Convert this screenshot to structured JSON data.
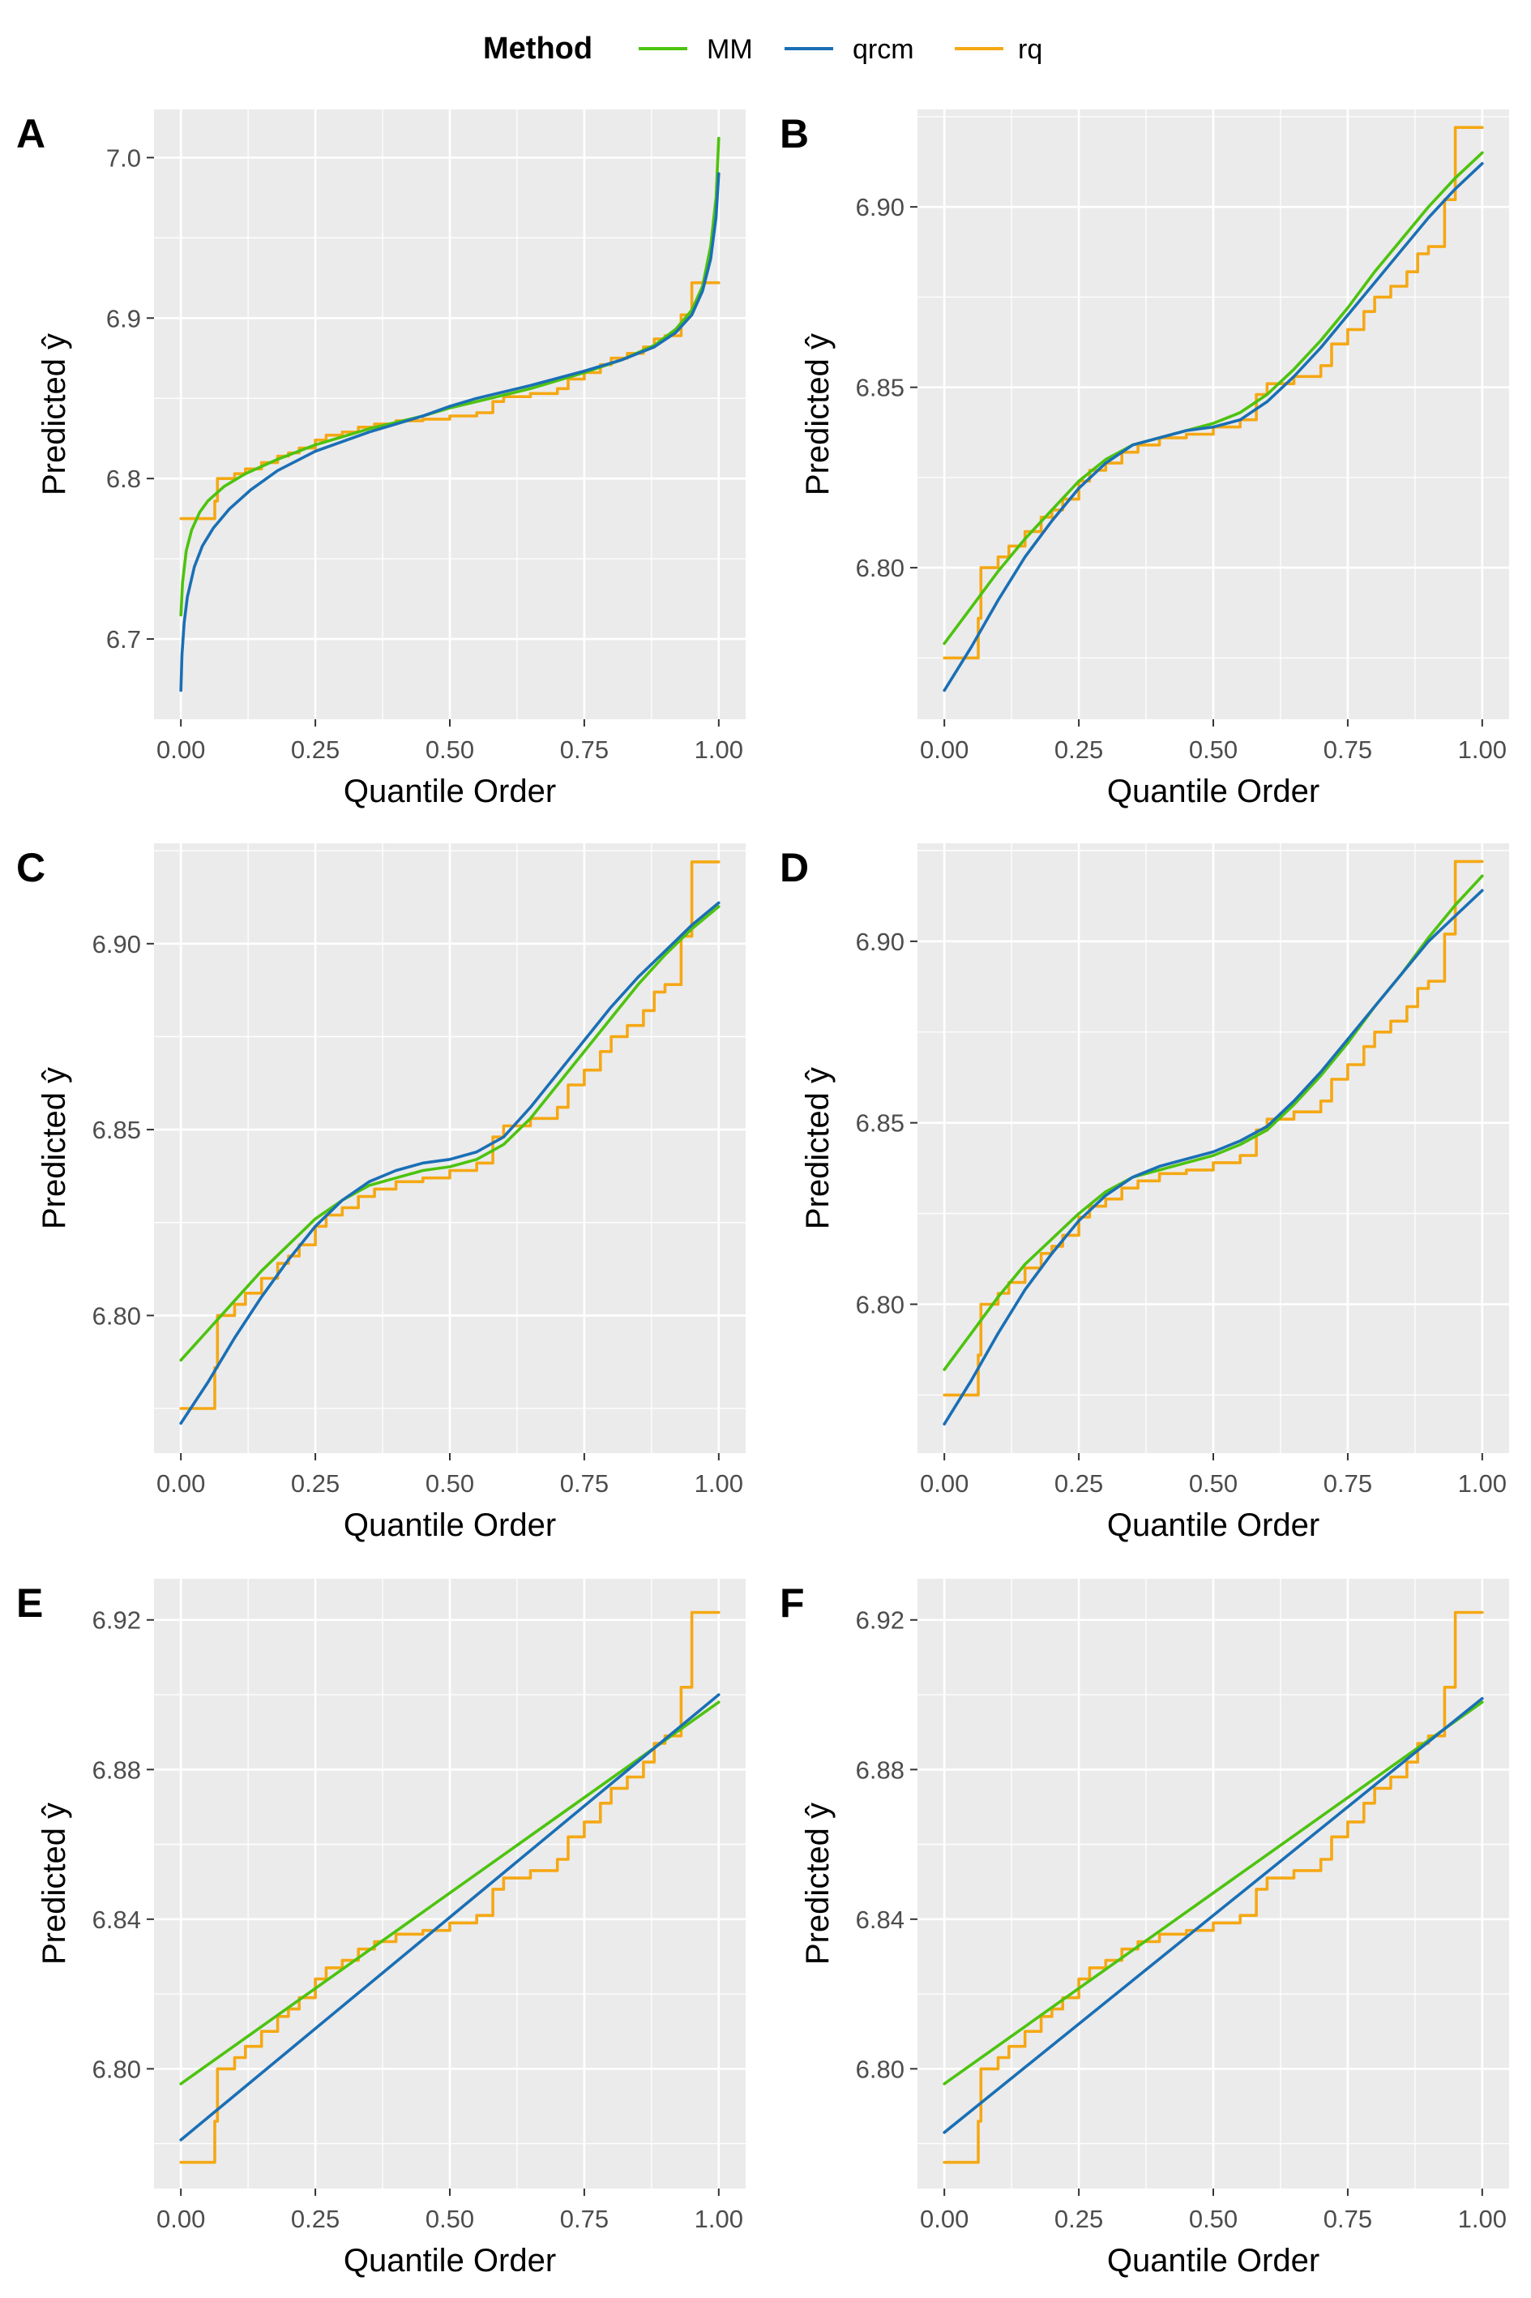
{
  "legend": {
    "title": "Method",
    "entries": [
      {
        "label": "MM",
        "color": "#4dc30f"
      },
      {
        "label": "qrcm",
        "color": "#1a6fb5"
      },
      {
        "label": "rq",
        "color": "#f5a814"
      }
    ]
  },
  "chart_data": [
    {
      "panel": "A",
      "type": "line",
      "xlabel": "Quantile Order",
      "ylabel": "Predicted",
      "xlim": [
        -0.05,
        1.05
      ],
      "ylim": [
        6.65,
        7.03
      ],
      "xticks": [
        0,
        0.25,
        0.5,
        0.75,
        1
      ],
      "xtick_labels": [
        "0.00",
        "0.25",
        "0.50",
        "0.75",
        "1.00"
      ],
      "yticks": [
        6.7,
        6.8,
        6.9,
        7.0
      ],
      "ytick_labels": [
        "6.7",
        "6.8",
        "6.9",
        "7.0"
      ],
      "series": [
        {
          "name": "rq",
          "step": true,
          "x": [
            0,
            0.063,
            0.068,
            0.1,
            0.12,
            0.15,
            0.18,
            0.2,
            0.22,
            0.25,
            0.27,
            0.3,
            0.33,
            0.36,
            0.4,
            0.45,
            0.5,
            0.55,
            0.58,
            0.6,
            0.65,
            0.7,
            0.72,
            0.75,
            0.78,
            0.8,
            0.83,
            0.86,
            0.88,
            0.9,
            0.93,
            0.95,
            1.0
          ],
          "y": [
            6.775,
            6.786,
            6.8,
            6.803,
            6.806,
            6.81,
            6.814,
            6.816,
            6.819,
            6.824,
            6.827,
            6.829,
            6.832,
            6.834,
            6.836,
            6.837,
            6.839,
            6.841,
            6.848,
            6.851,
            6.853,
            6.856,
            6.862,
            6.866,
            6.871,
            6.875,
            6.878,
            6.882,
            6.887,
            6.889,
            6.902,
            6.922,
            6.922
          ]
        },
        {
          "name": "MM",
          "x": [
            0,
            0.003,
            0.01,
            0.02,
            0.035,
            0.05,
            0.08,
            0.12,
            0.18,
            0.25,
            0.35,
            0.45,
            0.5,
            0.55,
            0.65,
            0.75,
            0.82,
            0.88,
            0.92,
            0.95,
            0.97,
            0.985,
            0.995,
            1.0
          ],
          "y": [
            6.715,
            6.735,
            6.755,
            6.768,
            6.779,
            6.786,
            6.795,
            6.803,
            6.812,
            6.821,
            6.831,
            6.839,
            6.844,
            6.848,
            6.856,
            6.866,
            6.874,
            6.883,
            6.893,
            6.905,
            6.92,
            6.945,
            6.975,
            7.012
          ]
        },
        {
          "name": "qrcm",
          "x": [
            0,
            0.002,
            0.006,
            0.012,
            0.025,
            0.04,
            0.06,
            0.09,
            0.13,
            0.18,
            0.25,
            0.35,
            0.45,
            0.5,
            0.55,
            0.65,
            0.75,
            0.82,
            0.88,
            0.92,
            0.95,
            0.97,
            0.985,
            0.995,
            1.0
          ],
          "y": [
            6.668,
            6.69,
            6.71,
            6.726,
            6.745,
            6.758,
            6.769,
            6.781,
            6.793,
            6.805,
            6.817,
            6.829,
            6.839,
            6.845,
            6.85,
            6.858,
            6.867,
            6.874,
            6.882,
            6.891,
            6.902,
            6.917,
            6.937,
            6.963,
            6.99
          ]
        }
      ]
    },
    {
      "panel": "B",
      "type": "line",
      "xlabel": "Quantile Order",
      "ylabel": "Predicted",
      "xlim": [
        -0.05,
        1.05
      ],
      "ylim": [
        6.758,
        6.927
      ],
      "xticks": [
        0,
        0.25,
        0.5,
        0.75,
        1
      ],
      "xtick_labels": [
        "0.00",
        "0.25",
        "0.50",
        "0.75",
        "1.00"
      ],
      "yticks": [
        6.8,
        6.85,
        6.9
      ],
      "ytick_labels": [
        "6.80",
        "6.85",
        "6.90"
      ],
      "series": [
        {
          "name": "rq",
          "step": true,
          "x": [
            0,
            0.063,
            0.068,
            0.1,
            0.12,
            0.15,
            0.18,
            0.2,
            0.22,
            0.25,
            0.27,
            0.3,
            0.33,
            0.36,
            0.4,
            0.45,
            0.5,
            0.55,
            0.58,
            0.6,
            0.65,
            0.7,
            0.72,
            0.75,
            0.78,
            0.8,
            0.83,
            0.86,
            0.88,
            0.9,
            0.93,
            0.95,
            1.0
          ],
          "y": [
            6.775,
            6.786,
            6.8,
            6.803,
            6.806,
            6.81,
            6.814,
            6.816,
            6.819,
            6.824,
            6.827,
            6.829,
            6.832,
            6.834,
            6.836,
            6.837,
            6.839,
            6.841,
            6.848,
            6.851,
            6.853,
            6.856,
            6.862,
            6.866,
            6.871,
            6.875,
            6.878,
            6.882,
            6.887,
            6.889,
            6.902,
            6.922,
            6.922
          ]
        },
        {
          "name": "MM",
          "x": [
            0,
            0.05,
            0.1,
            0.15,
            0.2,
            0.25,
            0.3,
            0.35,
            0.4,
            0.45,
            0.5,
            0.55,
            0.6,
            0.65,
            0.7,
            0.75,
            0.8,
            0.85,
            0.9,
            0.95,
            1.0
          ],
          "y": [
            6.779,
            6.789,
            6.799,
            6.808,
            6.816,
            6.824,
            6.83,
            6.834,
            6.836,
            6.838,
            6.84,
            6.843,
            6.848,
            6.855,
            6.863,
            6.872,
            6.882,
            6.891,
            6.9,
            6.908,
            6.915
          ]
        },
        {
          "name": "qrcm",
          "x": [
            0,
            0.05,
            0.1,
            0.15,
            0.2,
            0.25,
            0.3,
            0.35,
            0.4,
            0.45,
            0.5,
            0.55,
            0.6,
            0.65,
            0.7,
            0.75,
            0.8,
            0.85,
            0.9,
            0.95,
            1.0
          ],
          "y": [
            6.766,
            6.778,
            6.791,
            6.803,
            6.813,
            6.822,
            6.829,
            6.834,
            6.836,
            6.838,
            6.839,
            6.841,
            6.846,
            6.853,
            6.861,
            6.87,
            6.879,
            6.888,
            6.897,
            6.905,
            6.912
          ]
        }
      ]
    },
    {
      "panel": "C",
      "type": "line",
      "xlabel": "Quantile Order",
      "ylabel": "Predicted",
      "xlim": [
        -0.05,
        1.05
      ],
      "ylim": [
        6.763,
        6.927
      ],
      "xticks": [
        0,
        0.25,
        0.5,
        0.75,
        1
      ],
      "xtick_labels": [
        "0.00",
        "0.25",
        "0.50",
        "0.75",
        "1.00"
      ],
      "yticks": [
        6.8,
        6.85,
        6.9
      ],
      "ytick_labels": [
        "6.80",
        "6.85",
        "6.90"
      ],
      "series": [
        {
          "name": "rq",
          "step": true,
          "x": [
            0,
            0.063,
            0.068,
            0.1,
            0.12,
            0.15,
            0.18,
            0.2,
            0.22,
            0.25,
            0.27,
            0.3,
            0.33,
            0.36,
            0.4,
            0.45,
            0.5,
            0.55,
            0.58,
            0.6,
            0.65,
            0.7,
            0.72,
            0.75,
            0.78,
            0.8,
            0.83,
            0.86,
            0.88,
            0.9,
            0.93,
            0.95,
            1.0
          ],
          "y": [
            6.775,
            6.786,
            6.8,
            6.803,
            6.806,
            6.81,
            6.814,
            6.816,
            6.819,
            6.824,
            6.827,
            6.829,
            6.832,
            6.834,
            6.836,
            6.837,
            6.839,
            6.841,
            6.848,
            6.851,
            6.853,
            6.856,
            6.862,
            6.866,
            6.871,
            6.875,
            6.878,
            6.882,
            6.887,
            6.889,
            6.902,
            6.922,
            6.922
          ]
        },
        {
          "name": "MM",
          "x": [
            0,
            0.05,
            0.1,
            0.15,
            0.2,
            0.25,
            0.3,
            0.35,
            0.4,
            0.45,
            0.5,
            0.55,
            0.6,
            0.65,
            0.7,
            0.75,
            0.8,
            0.85,
            0.9,
            0.95,
            1.0
          ],
          "y": [
            6.788,
            6.796,
            6.804,
            6.812,
            6.819,
            6.826,
            6.831,
            6.835,
            6.837,
            6.839,
            6.84,
            6.842,
            6.846,
            6.853,
            6.862,
            6.871,
            6.88,
            6.889,
            6.897,
            6.904,
            6.91
          ]
        },
        {
          "name": "qrcm",
          "x": [
            0,
            0.05,
            0.1,
            0.15,
            0.2,
            0.25,
            0.3,
            0.35,
            0.4,
            0.45,
            0.5,
            0.55,
            0.6,
            0.65,
            0.7,
            0.75,
            0.8,
            0.85,
            0.9,
            0.95,
            1.0
          ],
          "y": [
            6.771,
            6.782,
            6.794,
            6.805,
            6.815,
            6.824,
            6.831,
            6.836,
            6.839,
            6.841,
            6.842,
            6.844,
            6.848,
            6.856,
            6.865,
            6.874,
            6.883,
            6.891,
            6.898,
            6.905,
            6.911
          ]
        }
      ]
    },
    {
      "panel": "D",
      "type": "line",
      "xlabel": "Quantile Order",
      "ylabel": "Predicted",
      "xlim": [
        -0.05,
        1.05
      ],
      "ylim": [
        6.759,
        6.927
      ],
      "xticks": [
        0,
        0.25,
        0.5,
        0.75,
        1
      ],
      "xtick_labels": [
        "0.00",
        "0.25",
        "0.50",
        "0.75",
        "1.00"
      ],
      "yticks": [
        6.8,
        6.85,
        6.9
      ],
      "ytick_labels": [
        "6.80",
        "6.85",
        "6.90"
      ],
      "series": [
        {
          "name": "rq",
          "step": true,
          "x": [
            0,
            0.063,
            0.068,
            0.1,
            0.12,
            0.15,
            0.18,
            0.2,
            0.22,
            0.25,
            0.27,
            0.3,
            0.33,
            0.36,
            0.4,
            0.45,
            0.5,
            0.55,
            0.58,
            0.6,
            0.65,
            0.7,
            0.72,
            0.75,
            0.78,
            0.8,
            0.83,
            0.86,
            0.88,
            0.9,
            0.93,
            0.95,
            1.0
          ],
          "y": [
            6.775,
            6.786,
            6.8,
            6.803,
            6.806,
            6.81,
            6.814,
            6.816,
            6.819,
            6.824,
            6.827,
            6.829,
            6.832,
            6.834,
            6.836,
            6.837,
            6.839,
            6.841,
            6.848,
            6.851,
            6.853,
            6.856,
            6.862,
            6.866,
            6.871,
            6.875,
            6.878,
            6.882,
            6.887,
            6.889,
            6.902,
            6.922,
            6.922
          ]
        },
        {
          "name": "MM",
          "x": [
            0,
            0.05,
            0.1,
            0.15,
            0.2,
            0.25,
            0.3,
            0.35,
            0.4,
            0.45,
            0.5,
            0.55,
            0.6,
            0.65,
            0.7,
            0.75,
            0.8,
            0.85,
            0.9,
            0.95,
            1.0
          ],
          "y": [
            6.782,
            6.792,
            6.802,
            6.811,
            6.818,
            6.825,
            6.831,
            6.835,
            6.837,
            6.839,
            6.841,
            6.844,
            6.848,
            6.855,
            6.863,
            6.872,
            6.882,
            6.891,
            6.901,
            6.91,
            6.918
          ]
        },
        {
          "name": "qrcm",
          "x": [
            0,
            0.05,
            0.1,
            0.15,
            0.2,
            0.25,
            0.3,
            0.35,
            0.4,
            0.45,
            0.5,
            0.55,
            0.6,
            0.65,
            0.7,
            0.75,
            0.8,
            0.85,
            0.9,
            0.95,
            1.0
          ],
          "y": [
            6.767,
            6.779,
            6.792,
            6.804,
            6.814,
            6.823,
            6.83,
            6.835,
            6.838,
            6.84,
            6.842,
            6.845,
            6.849,
            6.856,
            6.864,
            6.873,
            6.882,
            6.891,
            6.9,
            6.907,
            6.914
          ]
        }
      ]
    },
    {
      "panel": "E",
      "type": "line",
      "xlabel": "Quantile Order",
      "ylabel": "Predicted",
      "xlim": [
        -0.05,
        1.05
      ],
      "ylim": [
        6.768,
        6.931
      ],
      "xticks": [
        0,
        0.25,
        0.5,
        0.75,
        1
      ],
      "xtick_labels": [
        "0.00",
        "0.25",
        "0.50",
        "0.75",
        "1.00"
      ],
      "yticks": [
        6.8,
        6.84,
        6.88,
        6.92
      ],
      "ytick_labels": [
        "6.80",
        "6.84",
        "6.88",
        "6.92"
      ],
      "series": [
        {
          "name": "rq",
          "step": true,
          "x": [
            0,
            0.063,
            0.068,
            0.1,
            0.12,
            0.15,
            0.18,
            0.2,
            0.22,
            0.25,
            0.27,
            0.3,
            0.33,
            0.36,
            0.4,
            0.45,
            0.5,
            0.55,
            0.58,
            0.6,
            0.65,
            0.7,
            0.72,
            0.75,
            0.78,
            0.8,
            0.83,
            0.86,
            0.88,
            0.9,
            0.93,
            0.95,
            1.0
          ],
          "y": [
            6.775,
            6.786,
            6.8,
            6.803,
            6.806,
            6.81,
            6.814,
            6.816,
            6.819,
            6.824,
            6.827,
            6.829,
            6.832,
            6.834,
            6.836,
            6.837,
            6.839,
            6.841,
            6.848,
            6.851,
            6.853,
            6.856,
            6.862,
            6.866,
            6.871,
            6.875,
            6.878,
            6.882,
            6.887,
            6.889,
            6.902,
            6.922,
            6.922
          ]
        },
        {
          "name": "MM",
          "x": [
            0,
            1.0
          ],
          "y": [
            6.796,
            6.898
          ]
        },
        {
          "name": "qrcm",
          "x": [
            0,
            1.0
          ],
          "y": [
            6.781,
            6.9
          ]
        }
      ]
    },
    {
      "panel": "F",
      "type": "line",
      "xlabel": "Quantile Order",
      "ylabel": "Predicted",
      "xlim": [
        -0.05,
        1.05
      ],
      "ylim": [
        6.768,
        6.931
      ],
      "xticks": [
        0,
        0.25,
        0.5,
        0.75,
        1
      ],
      "xtick_labels": [
        "0.00",
        "0.25",
        "0.50",
        "0.75",
        "1.00"
      ],
      "yticks": [
        6.8,
        6.84,
        6.88,
        6.92
      ],
      "ytick_labels": [
        "6.80",
        "6.84",
        "6.88",
        "6.92"
      ],
      "series": [
        {
          "name": "rq",
          "step": true,
          "x": [
            0,
            0.063,
            0.068,
            0.1,
            0.12,
            0.15,
            0.18,
            0.2,
            0.22,
            0.25,
            0.27,
            0.3,
            0.33,
            0.36,
            0.4,
            0.45,
            0.5,
            0.55,
            0.58,
            0.6,
            0.65,
            0.7,
            0.72,
            0.75,
            0.78,
            0.8,
            0.83,
            0.86,
            0.88,
            0.9,
            0.93,
            0.95,
            1.0
          ],
          "y": [
            6.775,
            6.786,
            6.8,
            6.803,
            6.806,
            6.81,
            6.814,
            6.816,
            6.819,
            6.824,
            6.827,
            6.829,
            6.832,
            6.834,
            6.836,
            6.837,
            6.839,
            6.841,
            6.848,
            6.851,
            6.853,
            6.856,
            6.862,
            6.866,
            6.871,
            6.875,
            6.878,
            6.882,
            6.887,
            6.889,
            6.902,
            6.922,
            6.922
          ]
        },
        {
          "name": "MM",
          "x": [
            0,
            1.0
          ],
          "y": [
            6.796,
            6.898
          ]
        },
        {
          "name": "qrcm",
          "x": [
            0,
            1.0
          ],
          "y": [
            6.783,
            6.899
          ]
        }
      ]
    }
  ]
}
